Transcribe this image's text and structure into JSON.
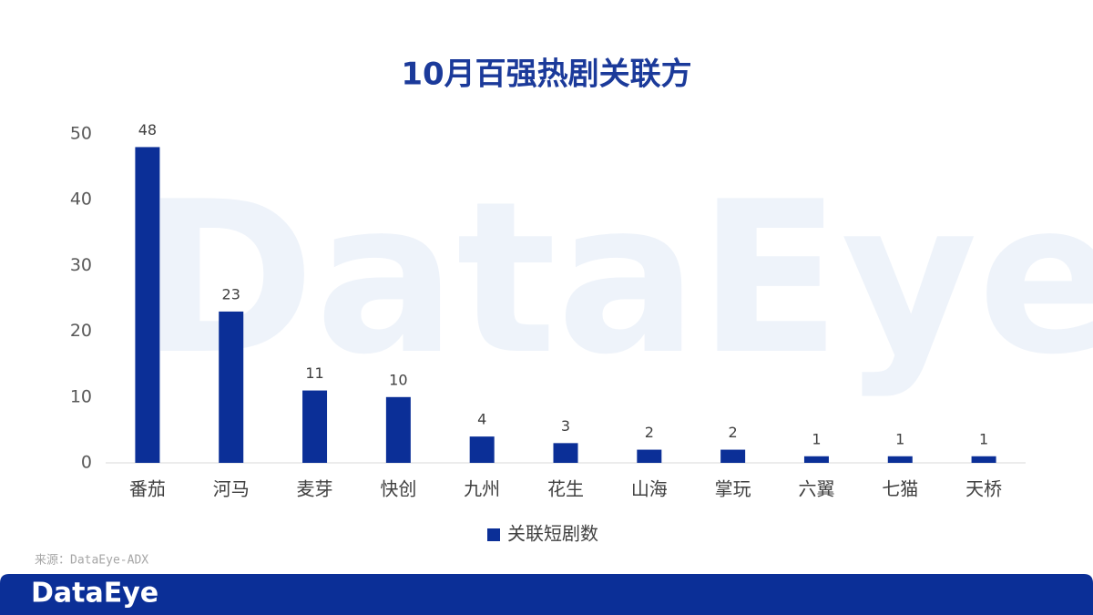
{
  "chart_data": {
    "type": "bar",
    "title": "10月百强热剧关联方",
    "categories": [
      "番茄",
      "河马",
      "麦芽",
      "快创",
      "九州",
      "花生",
      "山海",
      "掌玩",
      "六翼",
      "七猫",
      "天桥"
    ],
    "series": [
      {
        "name": "关联短剧数",
        "color": "#0b2f97",
        "values": [
          48,
          23,
          11,
          10,
          4,
          3,
          2,
          2,
          1,
          1,
          1
        ]
      }
    ],
    "ylim": [
      0,
      50
    ],
    "yticks": [
      0,
      10,
      20,
      30,
      40,
      50
    ],
    "grid": false,
    "legend": "bottom"
  },
  "watermark": "DataEye",
  "source": "来源：DataEye-ADX",
  "footer_logo": "DataEye"
}
